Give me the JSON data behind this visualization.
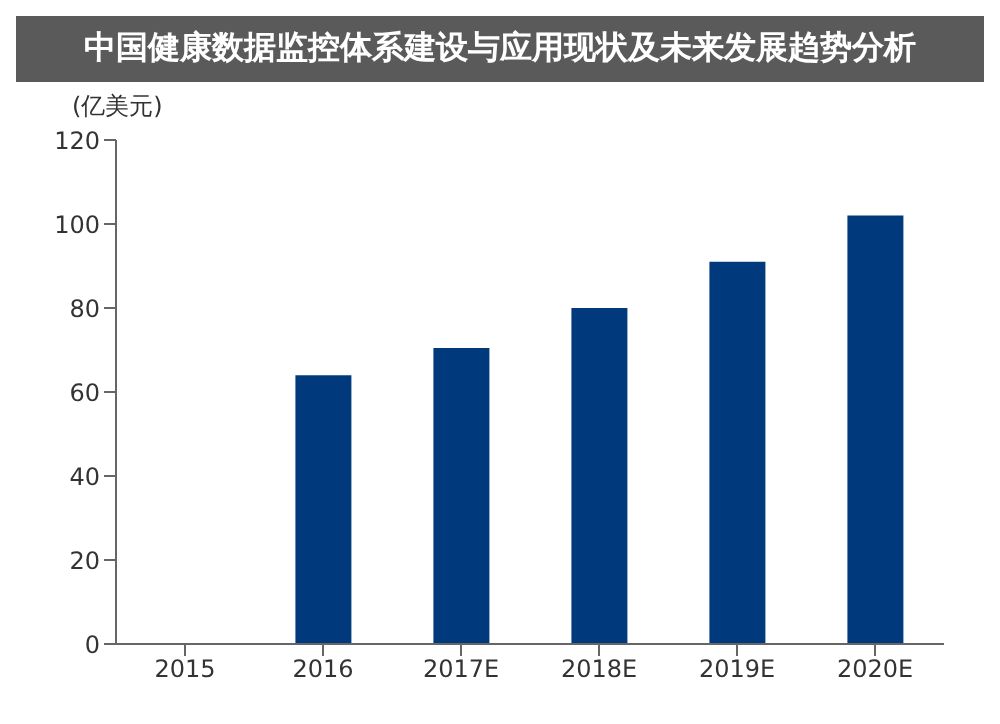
{
  "chart_data": {
    "type": "bar",
    "title": "中国健康数据监控体系建设与应用现状及未来发展趋势分析",
    "ylabel": "(亿美元)",
    "categories": [
      "2015",
      "2016",
      "2017E",
      "2018E",
      "2019E",
      "2020E"
    ],
    "values": [
      null,
      64,
      70.5,
      80,
      91,
      102
    ],
    "color": "#003a7d",
    "ylim": [
      0,
      120
    ],
    "yticks": [
      0,
      20,
      40,
      60,
      80,
      100,
      120
    ],
    "grid": false,
    "legend": false
  }
}
